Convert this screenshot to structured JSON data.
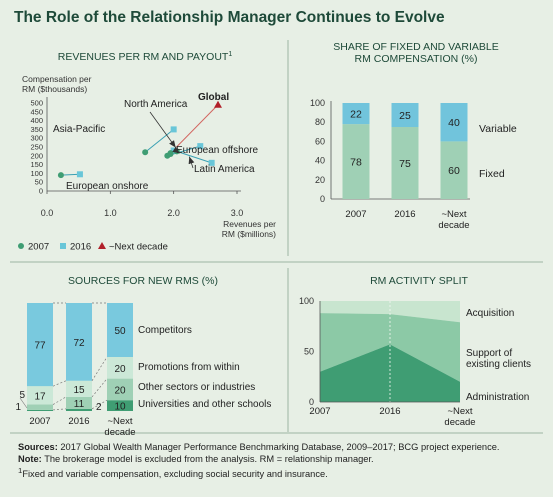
{
  "title": "The Role of the Relationship Manager Continues to Evolve",
  "colors": {
    "background": "#e7efe5",
    "green_2007": "#3f9d73",
    "blue_2016": "#69c6d8",
    "red_next": "#b1202a",
    "fixed": "#9fd0b5",
    "variable": "#71c4dc",
    "title": "#1e4a39",
    "grid": "#b9c8bb"
  },
  "chart_data": [
    {
      "id": "revenues",
      "type": "scatter",
      "title": "REVENUES PER RM AND PAYOUT",
      "title_footnote": "1",
      "ylabel_lines": [
        "Compensation per",
        "RM ($thousands)"
      ],
      "xlabel_lines": [
        "Revenues per",
        "RM ($millions)"
      ],
      "xlim": [
        0,
        3.0
      ],
      "ylim": [
        0,
        500
      ],
      "x_ticks": [
        "0.0",
        "1.0",
        "2.0",
        "3.0"
      ],
      "y_ticks": [
        "0",
        "50",
        "100",
        "150",
        "200",
        "250",
        "300",
        "350",
        "400",
        "450",
        "500"
      ],
      "legend": [
        "2007",
        "2016",
        "~Next decade"
      ],
      "points": [
        {
          "region": "European onshore",
          "x2007": 0.22,
          "y2007": 90,
          "x2016": 0.52,
          "y2016": 95
        },
        {
          "region": "Asia-Pacific",
          "x2007": 1.55,
          "y2007": 220,
          "x2016": 2.0,
          "y2016": 350
        },
        {
          "region": "North America",
          "x2007": 1.95,
          "y2007": 210,
          "x2016": 2.0,
          "y2016": 230
        },
        {
          "region": "European offshore",
          "x2007": 1.9,
          "y2007": 200,
          "x2016": 2.42,
          "y2016": 255
        },
        {
          "region": "Latin America",
          "x2007": 2.05,
          "y2007": 225,
          "x2016": 2.6,
          "y2016": 160
        },
        {
          "region": "Global",
          "x2007": 1.95,
          "y2007": 215,
          "xnext": 2.7,
          "ynext": 490
        }
      ],
      "labels": {
        "Asia-Pacific": "Asia-Pacific",
        "North America": "North America",
        "Global": "Global",
        "European offshore": "European offshore",
        "Latin America": "Latin America",
        "European onshore": "European onshore"
      }
    },
    {
      "id": "share",
      "type": "bar",
      "stacked": true,
      "title_lines": [
        "SHARE OF FIXED AND VARIABLE",
        "RM COMPENSATION (%)"
      ],
      "categories": [
        "2007",
        "2016",
        "~Next decade"
      ],
      "category_label_lines": [
        [
          "2007"
        ],
        [
          "2016"
        ],
        [
          "~Next",
          "decade"
        ]
      ],
      "ylim": [
        0,
        100
      ],
      "y_ticks": [
        "0",
        "20",
        "40",
        "60",
        "80",
        "100"
      ],
      "series": [
        {
          "name": "Fixed",
          "values": [
            78,
            75,
            60
          ]
        },
        {
          "name": "Variable",
          "values": [
            22,
            25,
            40
          ]
        }
      ]
    },
    {
      "id": "sources",
      "type": "bar",
      "stacked": true,
      "title": "SOURCES FOR NEW RMS (%)",
      "categories": [
        "2007",
        "2016",
        "~Next decade"
      ],
      "category_label_lines": [
        [
          "2007"
        ],
        [
          "2016"
        ],
        [
          "~Next",
          "decade"
        ]
      ],
      "series": [
        {
          "name": "Universities and other schools",
          "values": [
            1,
            2,
            10
          ],
          "color": "#3f9d73"
        },
        {
          "name": "Other sectors or industries",
          "values": [
            5,
            11,
            20
          ],
          "color": "#9fd0b5"
        },
        {
          "name": "Promotions from within",
          "values": [
            17,
            15,
            20
          ],
          "color": "#cbe8d7"
        },
        {
          "name": "Competitors",
          "values": [
            77,
            72,
            50
          ],
          "color": "#79c9de"
        }
      ]
    },
    {
      "id": "activity",
      "type": "area",
      "title": "RM ACTIVITY SPLIT",
      "categories": [
        "2007",
        "2016",
        "~Next decade"
      ],
      "category_label_lines": [
        [
          "2007"
        ],
        [
          "2016"
        ],
        [
          "~Next",
          "decade"
        ]
      ],
      "ylim": [
        0,
        100
      ],
      "y_ticks": [
        "0",
        "50",
        "100"
      ],
      "series": [
        {
          "name": "Administration",
          "values": [
            30,
            57,
            20
          ],
          "color": "#3f9d73"
        },
        {
          "name": "Support of existing clients",
          "values": [
            58,
            30,
            59
          ],
          "color": "#8cc9a6"
        },
        {
          "name": "Acquisition",
          "values": [
            12,
            13,
            21
          ],
          "color": "#c8e5cf"
        }
      ],
      "label_lines": {
        "Acquisition": [
          "Acquisition"
        ],
        "Support of existing clients": [
          "Support of",
          "existing clients"
        ],
        "Administration": [
          "Administration"
        ]
      }
    }
  ],
  "footer": {
    "sources_label": "Sources:",
    "sources_text": "2017 Global Wealth Manager Performance Benchmarking Database, 2009–2017; BCG project experience.",
    "note_label": "Note:",
    "note_text": "The brokerage model is excluded from the analysis. RM = relationship manager.",
    "footnote_mark": "1",
    "footnote_text": "Fixed and variable compensation, excluding social security and insurance."
  }
}
